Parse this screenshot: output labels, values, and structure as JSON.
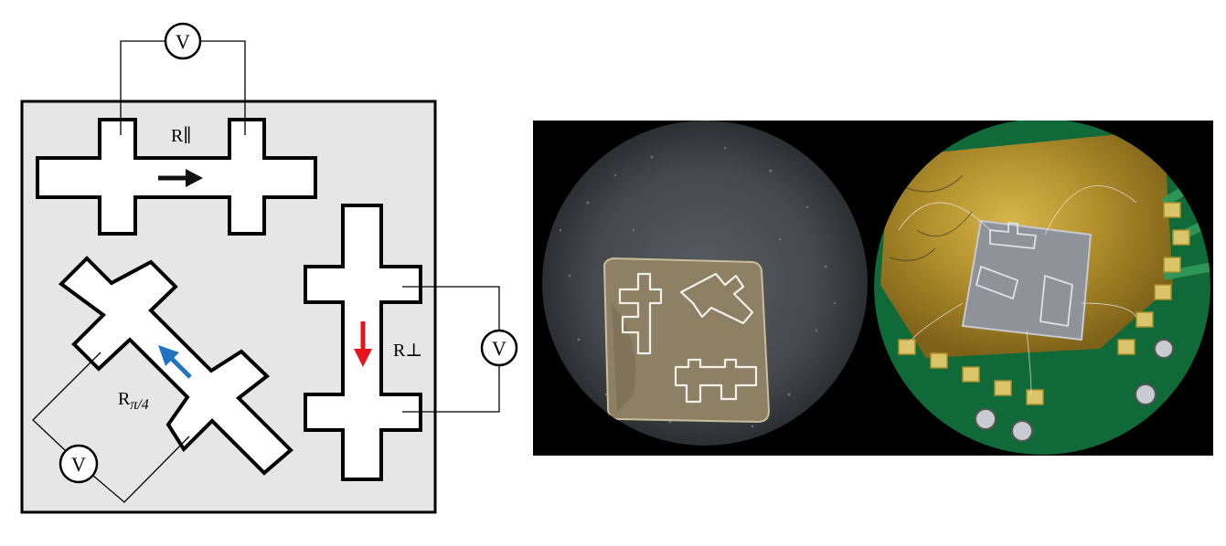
{
  "schematic": {
    "voltmeter_symbol": "V",
    "labels": {
      "r_parallel": "R∥",
      "r_perpendicular": "R⊥",
      "r_pi4_base": "R",
      "r_pi4_sub": "π/4"
    },
    "arrow_colors": {
      "parallel": "#111111",
      "perpendicular": "#e8141c",
      "diagonal": "#1f73c1"
    },
    "colors": {
      "substrate_fill": "#e6e6e6",
      "sample_fill": "#ffffff",
      "outline": "#000000"
    }
  },
  "photo": {
    "background": "#000000",
    "left_view": "microscope view of patterned chip on grey substrate",
    "right_view": "microscope view of chip wire-bonded on green PCB with gold pads"
  }
}
